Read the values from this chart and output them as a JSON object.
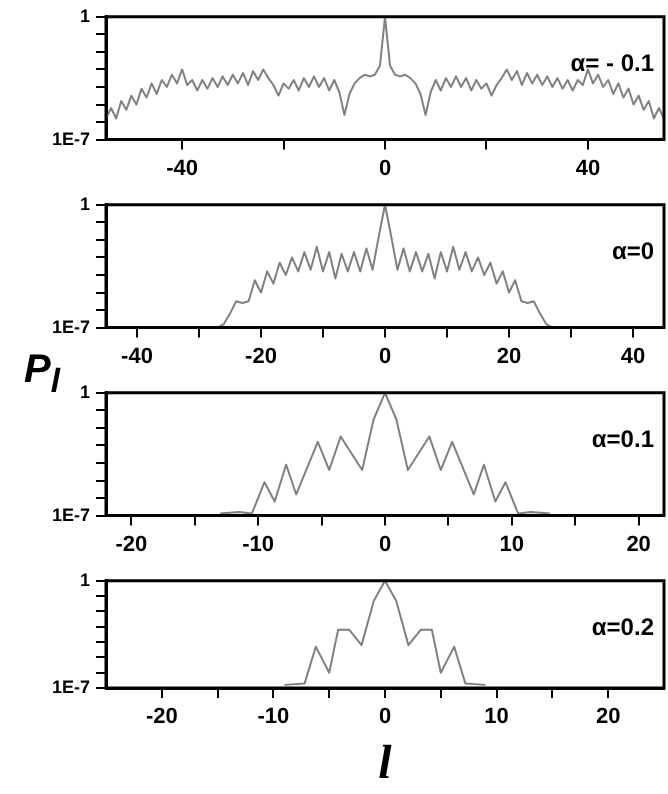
{
  "chart_data": [
    {
      "type": "line",
      "color": "#808080",
      "log": "y",
      "ylim": [
        1e-07,
        1
      ],
      "yticks": [
        {
          "value": 1,
          "label": "1"
        },
        {
          "value": 0.1,
          "label": null
        },
        {
          "value": 0.01,
          "label": null
        },
        {
          "value": 0.001,
          "label": null
        },
        {
          "value": 0.0001,
          "label": null
        },
        {
          "value": 1e-05,
          "label": null
        },
        {
          "value": 1e-06,
          "label": null
        },
        {
          "value": 1e-07,
          "label": "1E-7"
        }
      ],
      "xlim": [
        -55,
        55
      ],
      "xticks": [
        -40,
        {
          "value": -20,
          "label": null
        },
        0,
        {
          "value": 20,
          "label": null
        },
        40
      ],
      "annotations": [
        "α= - 0.1"
      ],
      "x": [
        -55,
        -54,
        -53,
        -52,
        -51,
        -50,
        -49,
        -48,
        -47,
        -46,
        -45,
        -44,
        -43,
        -42,
        -41,
        -40,
        -39,
        -38,
        -37,
        -36,
        -35,
        -34,
        -33,
        -32,
        -31,
        -30,
        -29,
        -28,
        -27,
        -26,
        -25,
        -24,
        -23,
        -22,
        -21,
        -20,
        -19,
        -18,
        -17,
        -16,
        -15,
        -14,
        -13,
        -12,
        -11,
        -10,
        -9,
        -8,
        -7,
        -6,
        -5,
        -4,
        -3,
        -2,
        -1,
        0,
        1,
        2,
        3,
        4,
        5,
        6,
        7,
        8,
        9,
        10,
        11,
        12,
        13,
        14,
        15,
        16,
        17,
        18,
        19,
        20,
        21,
        22,
        23,
        24,
        25,
        26,
        27,
        28,
        29,
        30,
        31,
        32,
        33,
        34,
        35,
        36,
        37,
        38,
        39,
        40,
        41,
        42,
        43,
        44,
        45,
        46,
        47,
        48,
        49,
        50,
        51,
        52,
        53,
        54,
        55
      ],
      "values": [
        1.6e-06,
        6.3e-06,
        1.6e-06,
        1.6e-05,
        5e-06,
        3.2e-05,
        1e-05,
        8e-05,
        2.5e-05,
        0.00016,
        4e-05,
        0.00025,
        0.0001,
        0.0005,
        0.00016,
        0.001,
        0.00013,
        0.00025,
        6.3e-05,
        0.00025,
        8e-05,
        0.00032,
        0.0001,
        0.0004,
        0.00013,
        0.0005,
        0.00016,
        0.00063,
        0.00013,
        0.0008,
        0.00025,
        0.001,
        0.00032,
        0.00013,
        3.2e-05,
        0.00016,
        8e-05,
        0.00025,
        6.3e-05,
        0.00032,
        0.0001,
        0.0004,
        0.0001,
        0.00032,
        6.3e-05,
        0.00025,
        5e-05,
        2.5e-06,
        4e-05,
        0.00016,
        0.00032,
        0.0005,
        0.0004,
        0.0005,
        0.0016,
        1,
        0.0016,
        0.0005,
        0.0004,
        0.0005,
        0.00032,
        0.00016,
        4e-05,
        2.5e-06,
        5e-05,
        0.00025,
        6.3e-05,
        0.00032,
        0.0001,
        0.0004,
        0.0001,
        0.00032,
        6.3e-05,
        0.00025,
        8e-05,
        0.00016,
        3.2e-05,
        0.00013,
        0.00032,
        0.001,
        0.00025,
        0.0008,
        0.00013,
        0.00063,
        0.00016,
        0.0005,
        0.00013,
        0.0004,
        0.0001,
        0.00032,
        8e-05,
        0.00025,
        6.3e-05,
        0.00025,
        0.00013,
        0.001,
        0.00016,
        0.0005,
        0.0001,
        0.00025,
        4e-05,
        0.00016,
        2.5e-05,
        8e-05,
        1e-05,
        3.2e-05,
        5e-06,
        1.6e-05,
        1.6e-06,
        6.3e-06,
        1.6e-06
      ]
    },
    {
      "type": "line",
      "color": "#808080",
      "log": "y",
      "ylim": [
        1e-07,
        1
      ],
      "yticks": [
        {
          "value": 1,
          "label": "1"
        },
        {
          "value": 0.1,
          "label": null
        },
        {
          "value": 0.01,
          "label": null
        },
        {
          "value": 0.001,
          "label": null
        },
        {
          "value": 0.0001,
          "label": null
        },
        {
          "value": 1e-05,
          "label": null
        },
        {
          "value": 1e-06,
          "label": null
        },
        {
          "value": 1e-07,
          "label": "1E-7"
        }
      ],
      "xlim": [
        -45,
        45
      ],
      "xticks": [
        -40,
        {
          "value": -30,
          "label": null
        },
        -20,
        {
          "value": -10,
          "label": null
        },
        0,
        {
          "value": 10,
          "label": null
        },
        20,
        {
          "value": 30,
          "label": null
        },
        40
      ],
      "annotations": [
        "α=0"
      ],
      "ylabel": "P$_{l}$",
      "x": [
        -27,
        -26,
        -25,
        -24,
        -23,
        -22,
        -21,
        -20,
        -19,
        -18,
        -17,
        -16,
        -15,
        -14,
        -13,
        -12,
        -11,
        -10,
        -9,
        -8,
        -7,
        -6,
        -5,
        -4,
        -3,
        -2,
        -1,
        0,
        1,
        2,
        3,
        4,
        5,
        6,
        7,
        8,
        9,
        10,
        11,
        12,
        13,
        14,
        15,
        16,
        17,
        18,
        19,
        20,
        21,
        22,
        23,
        24,
        25,
        26,
        27
      ],
      "values": [
        1e-07,
        1.6e-07,
        6.3e-07,
        3.2e-06,
        2.5e-06,
        3.2e-06,
        5e-05,
        1e-05,
        0.00016,
        3.2e-05,
        0.0005,
        0.0001,
        0.001,
        0.00016,
        0.002,
        0.0002,
        0.004,
        0.00016,
        0.002,
        6.3e-05,
        0.0016,
        0.00016,
        0.002,
        0.00016,
        0.0032,
        0.0002,
        0.016,
        1,
        0.016,
        0.0002,
        0.0032,
        0.00016,
        0.002,
        0.00016,
        0.0016,
        6.3e-05,
        0.002,
        0.00016,
        0.004,
        0.0002,
        0.002,
        0.00016,
        0.001,
        0.0001,
        0.0005,
        3.2e-05,
        0.00016,
        1e-05,
        5e-05,
        3.2e-06,
        2.5e-06,
        3.2e-06,
        6.3e-07,
        1.6e-07,
        1e-07
      ]
    },
    {
      "type": "line",
      "color": "#808080",
      "log": "y",
      "ylim": [
        1e-07,
        1
      ],
      "yticks": [
        {
          "value": 1,
          "label": "1"
        },
        {
          "value": 0.1,
          "label": null
        },
        {
          "value": 0.01,
          "label": null
        },
        {
          "value": 0.001,
          "label": null
        },
        {
          "value": 0.0001,
          "label": null
        },
        {
          "value": 1e-05,
          "label": null
        },
        {
          "value": 1e-06,
          "label": null
        },
        {
          "value": 1e-07,
          "label": "1E-7"
        }
      ],
      "xlim": [
        -22,
        22
      ],
      "xticks": [
        -20,
        {
          "value": -15,
          "label": null
        },
        -10,
        {
          "value": -5,
          "label": null
        },
        0,
        {
          "value": 5,
          "label": null
        },
        10,
        {
          "value": 15,
          "label": null
        },
        20
      ],
      "annotations": [
        "α=0.1"
      ],
      "x": [
        -13,
        -11.5,
        -10.5,
        -9.5,
        -8.7,
        -7.8,
        -7,
        -5.3,
        -4.4,
        -3.5,
        -1.8,
        -0.9,
        0,
        0.9,
        1.8,
        3.5,
        4.4,
        5.3,
        7,
        7.8,
        8.7,
        9.5,
        10.5,
        11.5,
        13
      ],
      "values": [
        1.3e-07,
        1.6e-07,
        1.3e-07,
        8e-06,
        6.3e-07,
        8e-05,
        1.6e-06,
        0.0016,
        4e-05,
        0.0032,
        4e-05,
        0.03,
        1,
        0.03,
        4e-05,
        0.0032,
        4e-05,
        0.0016,
        1.6e-06,
        8e-05,
        6.3e-07,
        8e-06,
        1.3e-07,
        1.6e-07,
        1.3e-07
      ]
    },
    {
      "type": "line",
      "color": "#808080",
      "log": "y",
      "ylim": [
        1e-07,
        1
      ],
      "yticks": [
        {
          "value": 1,
          "label": "1"
        },
        {
          "value": 0.1,
          "label": null
        },
        {
          "value": 0.01,
          "label": null
        },
        {
          "value": 0.001,
          "label": null
        },
        {
          "value": 0.0001,
          "label": null
        },
        {
          "value": 1e-05,
          "label": null
        },
        {
          "value": 1e-06,
          "label": null
        },
        {
          "value": 1e-07,
          "label": "1E-7"
        }
      ],
      "xlim": [
        -25,
        25
      ],
      "xticks": [
        -20,
        {
          "value": -15,
          "label": null
        },
        -10,
        {
          "value": -5,
          "label": null
        },
        0,
        {
          "value": 5,
          "label": null
        },
        10,
        {
          "value": 15,
          "label": null
        },
        20
      ],
      "annotations": [
        "α=0.2"
      ],
      "xlabel": "l",
      "x": [
        -9,
        -7.2,
        -6.2,
        -5,
        -4.2,
        -3.2,
        -2.1,
        -1,
        0,
        1,
        2.1,
        3.2,
        4.2,
        5,
        6.2,
        7.2,
        9
      ],
      "values": [
        1.6e-07,
        2e-07,
        5e-05,
        1e-06,
        0.00063,
        0.00063,
        6.3e-05,
        0.05,
        1,
        0.05,
        6.3e-05,
        0.00063,
        0.00063,
        1e-06,
        5e-05,
        2e-07,
        1.6e-07
      ]
    }
  ]
}
